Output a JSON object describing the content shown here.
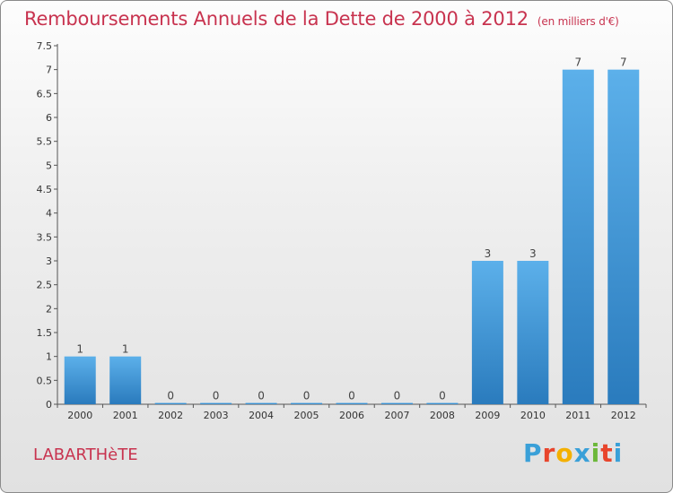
{
  "header": {
    "title": "Remboursements Annuels de la Dette de 2000 à 2012",
    "subtitle": "(en milliers d'€)"
  },
  "footer": {
    "commune": "LABARTHèTE",
    "brand": "Proxiti",
    "brand_colors": [
      "#3aa0d8",
      "#e8452c",
      "#f4b000",
      "#3aa0d8",
      "#6cb83a",
      "#e8452c",
      "#3aa0d8"
    ]
  },
  "chart_data": {
    "type": "bar",
    "categories": [
      "2000",
      "2001",
      "2002",
      "2003",
      "2004",
      "2005",
      "2006",
      "2007",
      "2008",
      "2009",
      "2010",
      "2011",
      "2012"
    ],
    "values": [
      1,
      1,
      0,
      0,
      0,
      0,
      0,
      0,
      0,
      3,
      3,
      7,
      7
    ],
    "data_labels": [
      "1",
      "1",
      "0",
      "0",
      "0",
      "0",
      "0",
      "0",
      "0",
      "3",
      "3",
      "7",
      "7"
    ],
    "ylim": [
      0,
      7.5
    ],
    "yticks": [
      "0",
      "0.5",
      "1",
      "1.5",
      "2",
      "2.5",
      "3",
      "3.5",
      "4",
      "4.5",
      "5",
      "5.5",
      "6",
      "6.5",
      "7",
      "7.5"
    ],
    "ytick_values": [
      0,
      0.5,
      1,
      1.5,
      2,
      2.5,
      3,
      3.5,
      4,
      4.5,
      5,
      5.5,
      6,
      6.5,
      7,
      7.5
    ],
    "bar_color": "#3d91d0",
    "grid": false
  }
}
